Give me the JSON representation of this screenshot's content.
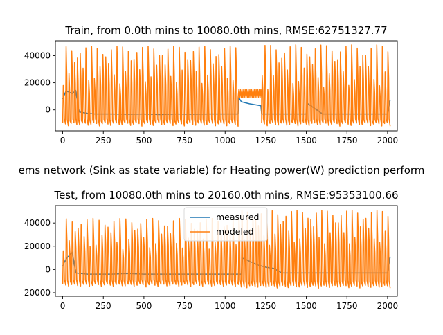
{
  "figure_title": "ems network (Sink as state variable) for Heating power(W) prediction perform",
  "colors": {
    "measured": "#1f77b4",
    "modeled": "#ff7f0e",
    "axis": "#000000",
    "legend_border": "#d9d9d9"
  },
  "chart_data": [
    {
      "type": "line",
      "title": "Train, from 0.0th mins to 10080.0th mins, RMSE:62751327.77",
      "xlabel": "",
      "ylabel": "",
      "xlim": [
        -45,
        2060
      ],
      "ylim": [
        -15500,
        51000
      ],
      "xticks": [
        0,
        250,
        500,
        750,
        1000,
        1250,
        1500,
        1750,
        2000
      ],
      "yticks": [
        0,
        20000,
        40000
      ],
      "grid": false,
      "legend": null,
      "series": [
        {
          "name": "measured",
          "x": [
            0,
            20,
            60,
            80,
            100,
            150,
            200,
            300,
            400,
            500,
            600,
            700,
            800,
            900,
            1000,
            1080,
            1085,
            1100,
            1150,
            1200,
            1220,
            1225,
            1300,
            1400,
            1500,
            1505,
            1600,
            1700,
            1800,
            1900,
            2000,
            2016
          ],
          "y": [
            8000,
            14000,
            12000,
            14500,
            -1500,
            -2500,
            -3000,
            -3000,
            -3200,
            -3000,
            -3500,
            -3000,
            -3200,
            -3000,
            -3000,
            -3000,
            9000,
            6000,
            4500,
            3500,
            3000,
            -3000,
            -3000,
            -3000,
            -3000,
            5000,
            -3000,
            -3000,
            -3000,
            -3000,
            -3000,
            7500
          ]
        },
        {
          "name": "modeled",
          "x": [
            0,
            2016
          ],
          "y": [
            10000,
            10000
          ],
          "oscillation": {
            "segments": [
              {
                "x0": 0,
                "x1": 1080,
                "count": 62,
                "peak_min": 18000,
                "peak_max": 47000,
                "trough": -12000
              },
              {
                "x0": 1080,
                "x1": 1225,
                "count": 0,
                "peak_min": 9000,
                "peak_max": 15000,
                "trough": 9000
              },
              {
                "x0": 1225,
                "x1": 2016,
                "count": 46,
                "peak_min": 15000,
                "peak_max": 48000,
                "trough": -12000
              }
            ]
          }
        }
      ]
    },
    {
      "type": "line",
      "title": "Test, from 10080.0th mins to 20160.0th mins, RMSE:95353100.66",
      "xlabel": "",
      "ylabel": "",
      "xlim": [
        -45,
        2060
      ],
      "ylim": [
        -23000,
        55000
      ],
      "xticks": [
        0,
        250,
        500,
        750,
        1000,
        1250,
        1500,
        1750,
        2000
      ],
      "yticks": [
        -20000,
        0,
        20000,
        40000
      ],
      "grid": false,
      "legend": "upper center",
      "series": [
        {
          "name": "measured",
          "x": [
            0,
            20,
            40,
            60,
            80,
            150,
            200,
            300,
            400,
            500,
            600,
            700,
            800,
            900,
            1000,
            1100,
            1105,
            1200,
            1250,
            1300,
            1350,
            1400,
            1500,
            1600,
            1700,
            1800,
            1900,
            2000,
            2016
          ],
          "y": [
            3000,
            9000,
            12000,
            15000,
            -3000,
            -4000,
            -4000,
            -4000,
            -3500,
            -4000,
            -4000,
            -4000,
            -4000,
            -4000,
            -4000,
            -4000,
            10000,
            4000,
            2000,
            1000,
            -3000,
            -3000,
            -3000,
            -3000,
            -3000,
            -3000,
            -3000,
            -3000,
            11000
          ]
        },
        {
          "name": "modeled",
          "x": [
            0,
            2016
          ],
          "y": [
            10000,
            10000
          ],
          "oscillation": {
            "segments": [
              {
                "x0": 0,
                "x1": 1100,
                "count": 60,
                "peak_min": 16000,
                "peak_max": 44000,
                "trough": -15000
              },
              {
                "x0": 1100,
                "x1": 2016,
                "count": 54,
                "peak_min": 20000,
                "peak_max": 51000,
                "trough": -16000
              }
            ]
          }
        }
      ]
    }
  ]
}
